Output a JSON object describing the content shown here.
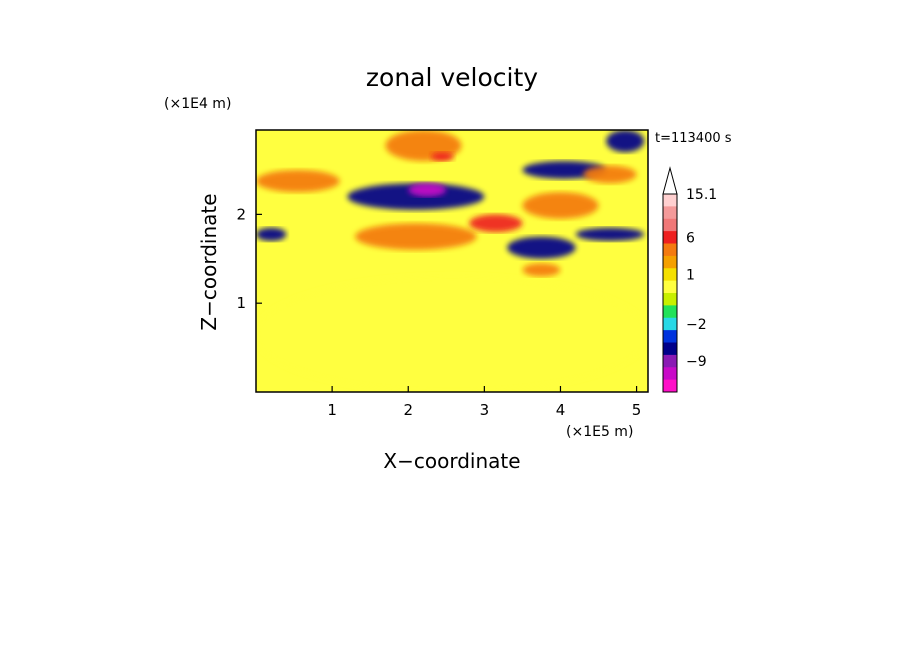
{
  "chart_data": {
    "type": "heatmap",
    "title": "zonal velocity",
    "xlabel": "X−coordinate",
    "ylabel": "Z−coordinate",
    "x_scale_label": "(×1E5 m)",
    "y_scale_label": "(×1E4 m)",
    "time_label": "t=113400 s",
    "xlim": [
      0,
      5.15
    ],
    "ylim": [
      0,
      2.95
    ],
    "x_ticks": [
      1,
      2,
      3,
      4,
      5
    ],
    "y_ticks": [
      1,
      2
    ],
    "colorbar": {
      "labels": [
        "15.1",
        "6",
        "1",
        "−2",
        "−9"
      ],
      "levels": [
        {
          "value": "15.1",
          "color": "#ffd0d0"
        },
        {
          "value": "12",
          "color": "#f49a9a"
        },
        {
          "value": "9",
          "color": "#f07878"
        },
        {
          "value": "6",
          "color": "#ee2020"
        },
        {
          "value": "3",
          "color": "#f47a10"
        },
        {
          "value": "1.5",
          "color": "#f5a000"
        },
        {
          "value": "1",
          "color": "#f5e000"
        },
        {
          "value": "0.5",
          "color": "#ffff40"
        },
        {
          "value": "0",
          "color": "#c8f000"
        },
        {
          "value": "-1",
          "color": "#22e25a"
        },
        {
          "value": "-2",
          "color": "#28d8e6"
        },
        {
          "value": "-4",
          "color": "#0033dd"
        },
        {
          "value": "-6",
          "color": "#00008a"
        },
        {
          "value": "-9",
          "color": "#8a1ab4"
        },
        {
          "value": "-12",
          "color": "#c80ac8"
        },
        {
          "value": "-15",
          "color": "#ff10c8"
        }
      ]
    },
    "field_bands": [
      {
        "x": [
          0.0,
          0.4
        ],
        "z": [
          1.7,
          1.85
        ],
        "value": -6
      },
      {
        "x": [
          1.2,
          3.0
        ],
        "z": [
          2.05,
          2.35
        ],
        "value": -6
      },
      {
        "x": [
          2.0,
          2.5
        ],
        "z": [
          2.2,
          2.35
        ],
        "value": -12
      },
      {
        "x": [
          3.3,
          4.2
        ],
        "z": [
          1.5,
          1.75
        ],
        "value": -6
      },
      {
        "x": [
          4.2,
          5.1
        ],
        "z": [
          1.7,
          1.85
        ],
        "value": -6
      },
      {
        "x": [
          3.5,
          4.6
        ],
        "z": [
          2.4,
          2.6
        ],
        "value": -6
      },
      {
        "x": [
          4.6,
          5.1
        ],
        "z": [
          2.7,
          2.95
        ],
        "value": -6
      },
      {
        "x": [
          1.7,
          2.7
        ],
        "z": [
          2.6,
          2.95
        ],
        "value": 3
      },
      {
        "x": [
          2.3,
          2.6
        ],
        "z": [
          2.6,
          2.7
        ],
        "value": 6
      },
      {
        "x": [
          0.0,
          1.1
        ],
        "z": [
          2.25,
          2.5
        ],
        "value": 3
      },
      {
        "x": [
          1.3,
          2.9
        ],
        "z": [
          1.6,
          1.9
        ],
        "value": 3
      },
      {
        "x": [
          2.8,
          3.5
        ],
        "z": [
          1.8,
          2.0
        ],
        "value": 6
      },
      {
        "x": [
          3.5,
          4.5
        ],
        "z": [
          1.95,
          2.25
        ],
        "value": 3
      },
      {
        "x": [
          3.5,
          4.0
        ],
        "z": [
          1.3,
          1.45
        ],
        "value": 3
      },
      {
        "x": [
          4.3,
          5.0
        ],
        "z": [
          2.35,
          2.55
        ],
        "value": 3
      },
      {
        "x": [
          0.0,
          5.15
        ],
        "z": [
          0.0,
          1.3
        ],
        "value": 0.5
      }
    ]
  }
}
